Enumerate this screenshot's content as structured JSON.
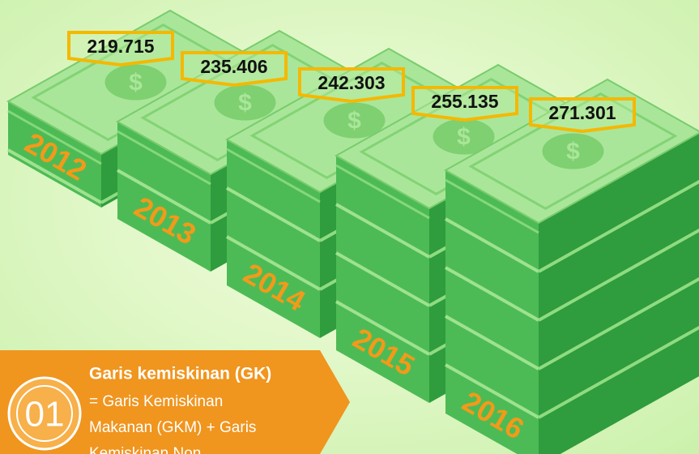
{
  "items": [
    {
      "year": "2012",
      "value": "219.715"
    },
    {
      "year": "2013",
      "value": "235.406"
    },
    {
      "year": "2014",
      "value": "242.303"
    },
    {
      "year": "2015",
      "value": "255.135"
    },
    {
      "year": "2016",
      "value": "271.301"
    }
  ],
  "info": {
    "badge": "01",
    "title": "Garis kemiskinan (GK)",
    "lines": [
      "= Garis Kemiskinan",
      "Makanan (GKM) +  Garis",
      "Kemiskinan Non"
    ]
  }
}
